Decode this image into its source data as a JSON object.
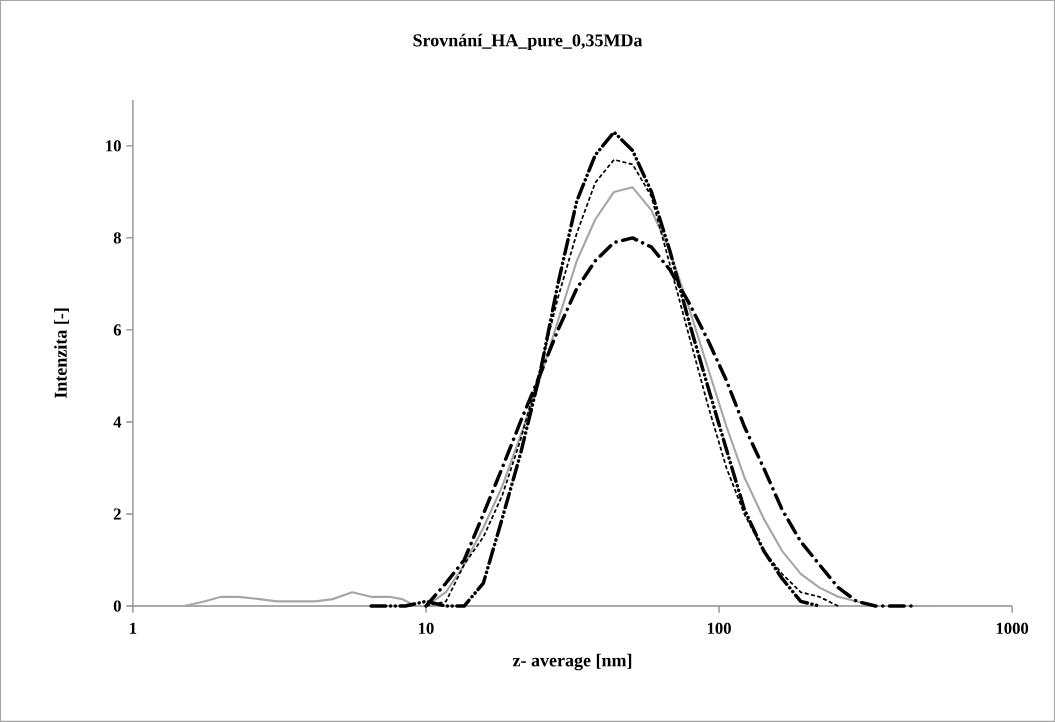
{
  "chart_data": {
    "type": "line",
    "title": "Srovnání_HA_pure_0,35MDa",
    "xlabel": "z- average [nm]",
    "ylabel": "Intenzita [-]",
    "log": "x",
    "xlim": [
      1,
      1000
    ],
    "xticks": [
      1,
      10,
      100,
      1000
    ],
    "ylim": [
      0,
      11
    ],
    "yticks": [
      0,
      2,
      4,
      6,
      8,
      10
    ],
    "grid": false,
    "marker": "none",
    "series": [
      {
        "color": "#a6a6a6",
        "line_style": "solid",
        "x": [
          1.5,
          1.75,
          2.0,
          2.3,
          2.7,
          3.1,
          3.6,
          4.2,
          4.8,
          5.6,
          6.5,
          7.5,
          8.3,
          9.2,
          10,
          11.7,
          13.5,
          15.7,
          18.2,
          21,
          24.4,
          28.2,
          32.7,
          37.8,
          43.8,
          50.7,
          58.8,
          68.1,
          78.8,
          91.3,
          106,
          122,
          142,
          164,
          190,
          220,
          255,
          295,
          342,
          396,
          459,
          531
        ],
        "values": [
          0,
          0.1,
          0.2,
          0.2,
          0.15,
          0.1,
          0.1,
          0.1,
          0.15,
          0.3,
          0.2,
          0.2,
          0.15,
          0,
          0,
          0.3,
          0.9,
          1.7,
          2.6,
          3.7,
          4.9,
          6.2,
          7.5,
          8.4,
          9.0,
          9.1,
          8.6,
          7.7,
          6.5,
          5.2,
          3.9,
          2.8,
          1.9,
          1.2,
          0.7,
          0.4,
          0.2,
          0.1,
          0,
          0,
          0,
          0
        ]
      },
      {
        "color": "#000000",
        "line_style": "dashed",
        "x": [
          10,
          11.7,
          13.5,
          15.7,
          18.2,
          21,
          24.4,
          28.2,
          32.7,
          37.8,
          43.8,
          50.7,
          58.8,
          68.1,
          78.8,
          91.3,
          106,
          122,
          142,
          164,
          190,
          220,
          255
        ],
        "values": [
          0,
          0.1,
          0.9,
          1.5,
          2.4,
          3.6,
          5.1,
          6.7,
          8.1,
          9.2,
          9.7,
          9.6,
          8.9,
          7.4,
          5.9,
          4.4,
          3.0,
          2.0,
          1.2,
          0.7,
          0.3,
          0.2,
          0
        ]
      },
      {
        "color": "#000000",
        "line_style": "longdashdotdot",
        "x": [
          6.5,
          7.5,
          8.5,
          10,
          11.7,
          13.5,
          15.7,
          18.2,
          21,
          24.4,
          28.2,
          32.7,
          37.8,
          43.8,
          50.7,
          58.8,
          68.1,
          78.8,
          91.3,
          106,
          122,
          142,
          164,
          190,
          220
        ],
        "values": [
          0,
          0,
          0,
          0.1,
          0,
          0,
          0.5,
          1.9,
          3.3,
          5.0,
          7.0,
          8.8,
          9.8,
          10.3,
          9.9,
          9.0,
          7.7,
          6.2,
          4.8,
          3.4,
          2.1,
          1.2,
          0.6,
          0.1,
          0
        ]
      },
      {
        "color": "#000000",
        "line_style": "longdashdot",
        "x": [
          10,
          11.7,
          13.5,
          15.7,
          18.2,
          21,
          24.4,
          28.2,
          32.7,
          37.8,
          43.8,
          50.7,
          58.8,
          68.1,
          78.8,
          91.3,
          106,
          122,
          142,
          164,
          190,
          220,
          255,
          295,
          342,
          396,
          459
        ],
        "values": [
          0,
          0.5,
          1.0,
          2.0,
          3.0,
          4.0,
          5.0,
          6.0,
          6.9,
          7.5,
          7.9,
          8.0,
          7.8,
          7.3,
          6.6,
          5.8,
          4.9,
          3.9,
          3.0,
          2.1,
          1.4,
          0.9,
          0.4,
          0.1,
          0,
          0,
          0
        ]
      }
    ]
  }
}
